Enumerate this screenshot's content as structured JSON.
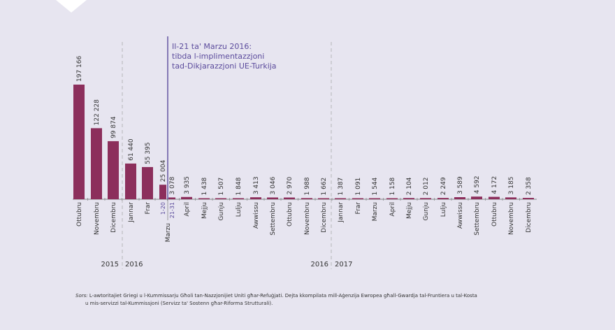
{
  "chart_data": {
    "type": "bar",
    "categories": [
      "Ottubru",
      "Novembru",
      "Dicembru",
      "Jannar",
      "Frar",
      "1-20",
      "21-31",
      "April",
      "Mejju",
      "Gunju",
      "Lulju",
      "Awwissu",
      "Settembru",
      "Ottubru",
      "Novembru",
      "Dicembru",
      "Jannar",
      "Frar",
      "Marzu",
      "April",
      "Mejju",
      "Gunju",
      "Lulju",
      "Awwissu",
      "Settembru",
      "Ottubru",
      "Novembru",
      "Dicembru"
    ],
    "values": [
      197166,
      122228,
      99874,
      61440,
      55395,
      25004,
      3078,
      3935,
      1438,
      1507,
      1848,
      3413,
      3046,
      2970,
      1988,
      1662,
      1387,
      1091,
      1544,
      1158,
      2104,
      2012,
      2249,
      3589,
      4592,
      4172,
      3185,
      2358
    ],
    "value_labels": [
      "197 166",
      "122 228",
      "99 874",
      "61 440",
      "55 395",
      "25 004",
      "3 078",
      "3 935",
      "1 438",
      "1 507",
      "1 848",
      "3 413",
      "3 046",
      "2 970",
      "1 988",
      "1 662",
      "1 387",
      "1 091",
      "1 544",
      "1 158",
      "2 104",
      "2 012",
      "2 249",
      "3 589",
      "4 592",
      "4 172",
      "3 185",
      "2 358"
    ],
    "group_label_marzu": "Marzu",
    "year_labels": [
      "2015",
      "2016",
      "2016",
      "2017"
    ],
    "annotation": [
      "Il-21 ta' Marzu 2016:",
      "tibda l-implimentazzjoni",
      "tad-Dikjarazzjoni UE-Turkija"
    ],
    "bar_color": "#8c2f5c",
    "annotation_color": "#5b4b9c",
    "legend": "none",
    "grid": false
  },
  "source": {
    "label": "Sors:",
    "text": " L-awtoritajiet Griegi u l-Kummissarju Għoli tan-Nazzjonijiet Uniti għar-Refuġjati. Dejta kkompilata mill-Aġenzija Ewropea għall-Gwardja tal-Fruntiera u tal-Kosta",
    "text2": "u mis-servizzi tal-Kummissjoni (Servizz ta' Sostenn għar-Riforma Strutturali)."
  }
}
